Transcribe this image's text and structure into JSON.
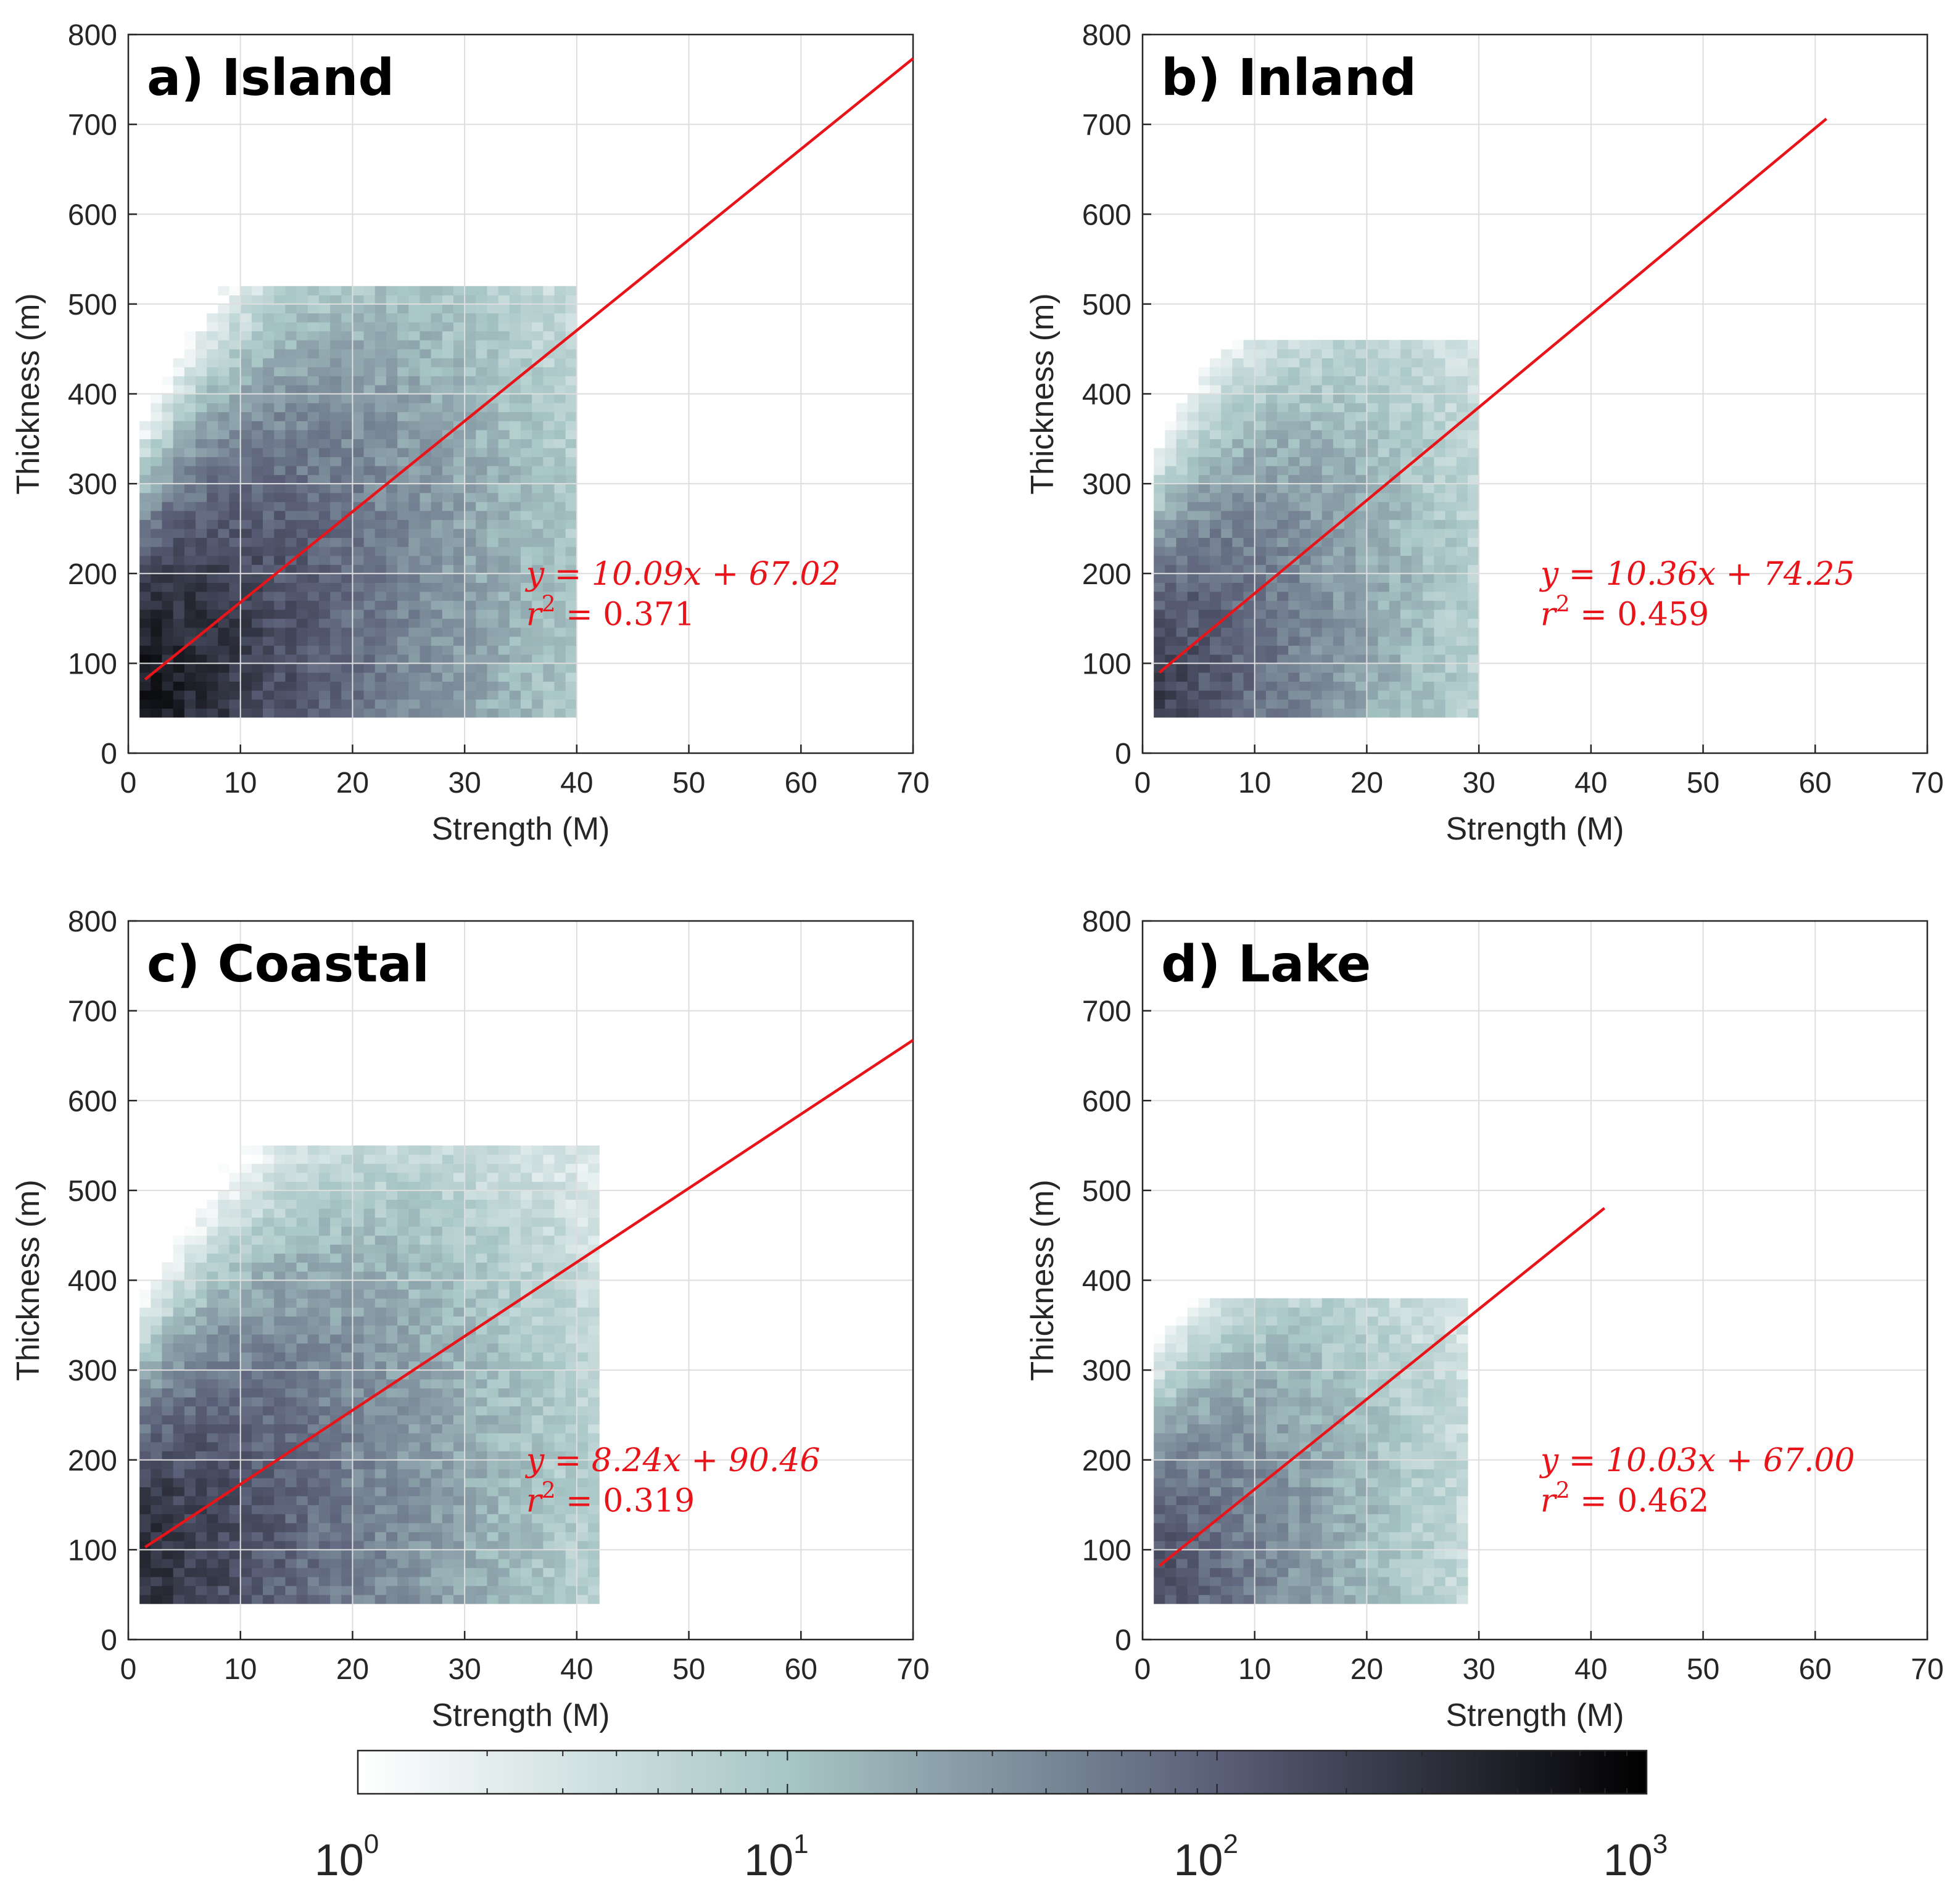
{
  "figure": {
    "colorbar": {
      "scale": "log",
      "range": [
        1,
        1000
      ],
      "colors": [
        "#ffffff",
        "#a8c6c6",
        "#5a5f78",
        "#000000"
      ],
      "tick_labels": [
        {
          "base": "10",
          "exp": "0"
        },
        {
          "base": "10",
          "exp": "1"
        },
        {
          "base": "10",
          "exp": "2"
        },
        {
          "base": "10",
          "exp": "3"
        }
      ]
    },
    "fit_color": "#e8141a"
  },
  "chart_data": [
    {
      "type": "heatmap",
      "title": "a) Island",
      "xlabel": "Strength (M)",
      "ylabel": "Thickness (m)",
      "xlim": [
        0,
        70
      ],
      "ylim": [
        0,
        800
      ],
      "xticks": [
        "0",
        "10",
        "20",
        "30",
        "40",
        "50",
        "60",
        "70"
      ],
      "yticks": [
        "0",
        "100",
        "200",
        "300",
        "400",
        "500",
        "600",
        "700",
        "800"
      ],
      "fit": {
        "slope": 10.09,
        "intercept": 67.02,
        "x_range": [
          1.5,
          70
        ],
        "equation": "y = 10.09x + 67.02",
        "r2_label": "r",
        "r2_value": " = 0.371"
      },
      "density": {
        "x_max": 40,
        "y_max": 520,
        "spread": 0.55,
        "peak_count": 800,
        "cells": 1600
      }
    },
    {
      "type": "heatmap",
      "title": "b) Inland",
      "xlabel": "Strength (M)",
      "ylabel": "Thickness (m)",
      "xlim": [
        0,
        70
      ],
      "ylim": [
        0,
        800
      ],
      "xticks": [
        "0",
        "10",
        "20",
        "30",
        "40",
        "50",
        "60",
        "70"
      ],
      "yticks": [
        "0",
        "100",
        "200",
        "300",
        "400",
        "500",
        "600",
        "700",
        "800"
      ],
      "fit": {
        "slope": 10.36,
        "intercept": 74.25,
        "x_range": [
          1.5,
          61
        ],
        "equation": "y = 10.36x + 74.25",
        "r2_label": "r",
        "r2_value": " = 0.459"
      },
      "density": {
        "x_max": 30,
        "y_max": 460,
        "spread": 0.45,
        "peak_count": 300,
        "cells": 900
      }
    },
    {
      "type": "heatmap",
      "title": "c) Coastal",
      "xlabel": "Strength (M)",
      "ylabel": "Thickness (m)",
      "xlim": [
        0,
        70
      ],
      "ylim": [
        0,
        800
      ],
      "xticks": [
        "0",
        "10",
        "20",
        "30",
        "40",
        "50",
        "60",
        "70"
      ],
      "yticks": [
        "0",
        "100",
        "200",
        "300",
        "400",
        "500",
        "600",
        "700",
        "800"
      ],
      "fit": {
        "slope": 8.24,
        "intercept": 90.46,
        "x_range": [
          1.5,
          70
        ],
        "equation": "y = 8.24x + 90.46",
        "r2_label": "r",
        "r2_value": " = 0.319"
      },
      "density": {
        "x_max": 42,
        "y_max": 550,
        "spread": 0.6,
        "peak_count": 500,
        "cells": 1500
      }
    },
    {
      "type": "heatmap",
      "title": "d) Lake",
      "xlabel": "Strength (M)",
      "ylabel": "Thickness (m)",
      "xlim": [
        0,
        70
      ],
      "ylim": [
        0,
        800
      ],
      "xticks": [
        "0",
        "10",
        "20",
        "30",
        "40",
        "50",
        "60",
        "70"
      ],
      "yticks": [
        "0",
        "100",
        "200",
        "300",
        "400",
        "500",
        "600",
        "700",
        "800"
      ],
      "fit": {
        "slope": 10.03,
        "intercept": 67.0,
        "x_range": [
          1.5,
          41.2
        ],
        "equation": "y = 10.03x + 67.00",
        "r2_label": "r",
        "r2_value": " = 0.462"
      },
      "density": {
        "x_max": 29,
        "y_max": 380,
        "spread": 0.4,
        "peak_count": 200,
        "cells": 700
      }
    }
  ]
}
